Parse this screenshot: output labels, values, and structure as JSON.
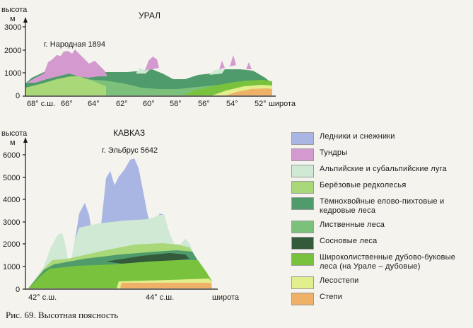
{
  "ural": {
    "title": "УРАЛ",
    "y_axis_label": "высота",
    "y_axis_unit": "м",
    "y_ticks": [
      "3000",
      "2000",
      "1000",
      "0"
    ],
    "x_ticks": [
      "68° с.ш.",
      "66°",
      "64°",
      "62°",
      "60°",
      "58°",
      "56°",
      "54°",
      "52°"
    ],
    "x_axis_label": "широта",
    "peak_label": "г. Народная 1894"
  },
  "caucasus": {
    "title": "КАВКАЗ",
    "y_axis_label": "высота",
    "y_axis_unit": "м",
    "y_ticks": [
      "6000",
      "5000",
      "4000",
      "3000",
      "2000",
      "1000",
      "0"
    ],
    "x_ticks": [
      "42° с.ш.",
      "44° с.ш."
    ],
    "x_axis_label": "широта",
    "peak_label": "г. Эльбрус 5642"
  },
  "legend": [
    {
      "label": "Ледники и снежники",
      "color": "#a9b6e3"
    },
    {
      "label": "Тундры",
      "color": "#d49ad0"
    },
    {
      "label": "Альпийские и субальпийские луга",
      "color": "#cfe9d4"
    },
    {
      "label": "Берёзовые редколесья",
      "color": "#a8d877"
    },
    {
      "label": "Тёмнохвойные елово-пихтовые и кедровые леса",
      "color": "#4f9b6b"
    },
    {
      "label": "Лиственные леса",
      "color": "#7cc17b"
    },
    {
      "label": "Сосновые леса",
      "color": "#335a3a"
    },
    {
      "label": "Широколиственные дубово-буковые леса (на Урале – дубовые)",
      "color": "#79c23e"
    },
    {
      "label": "Лесостепи",
      "color": "#e3ee8c"
    },
    {
      "label": "Степи",
      "color": "#efb067"
    }
  ],
  "caption": "Рис. 69. Высотная поясность"
}
